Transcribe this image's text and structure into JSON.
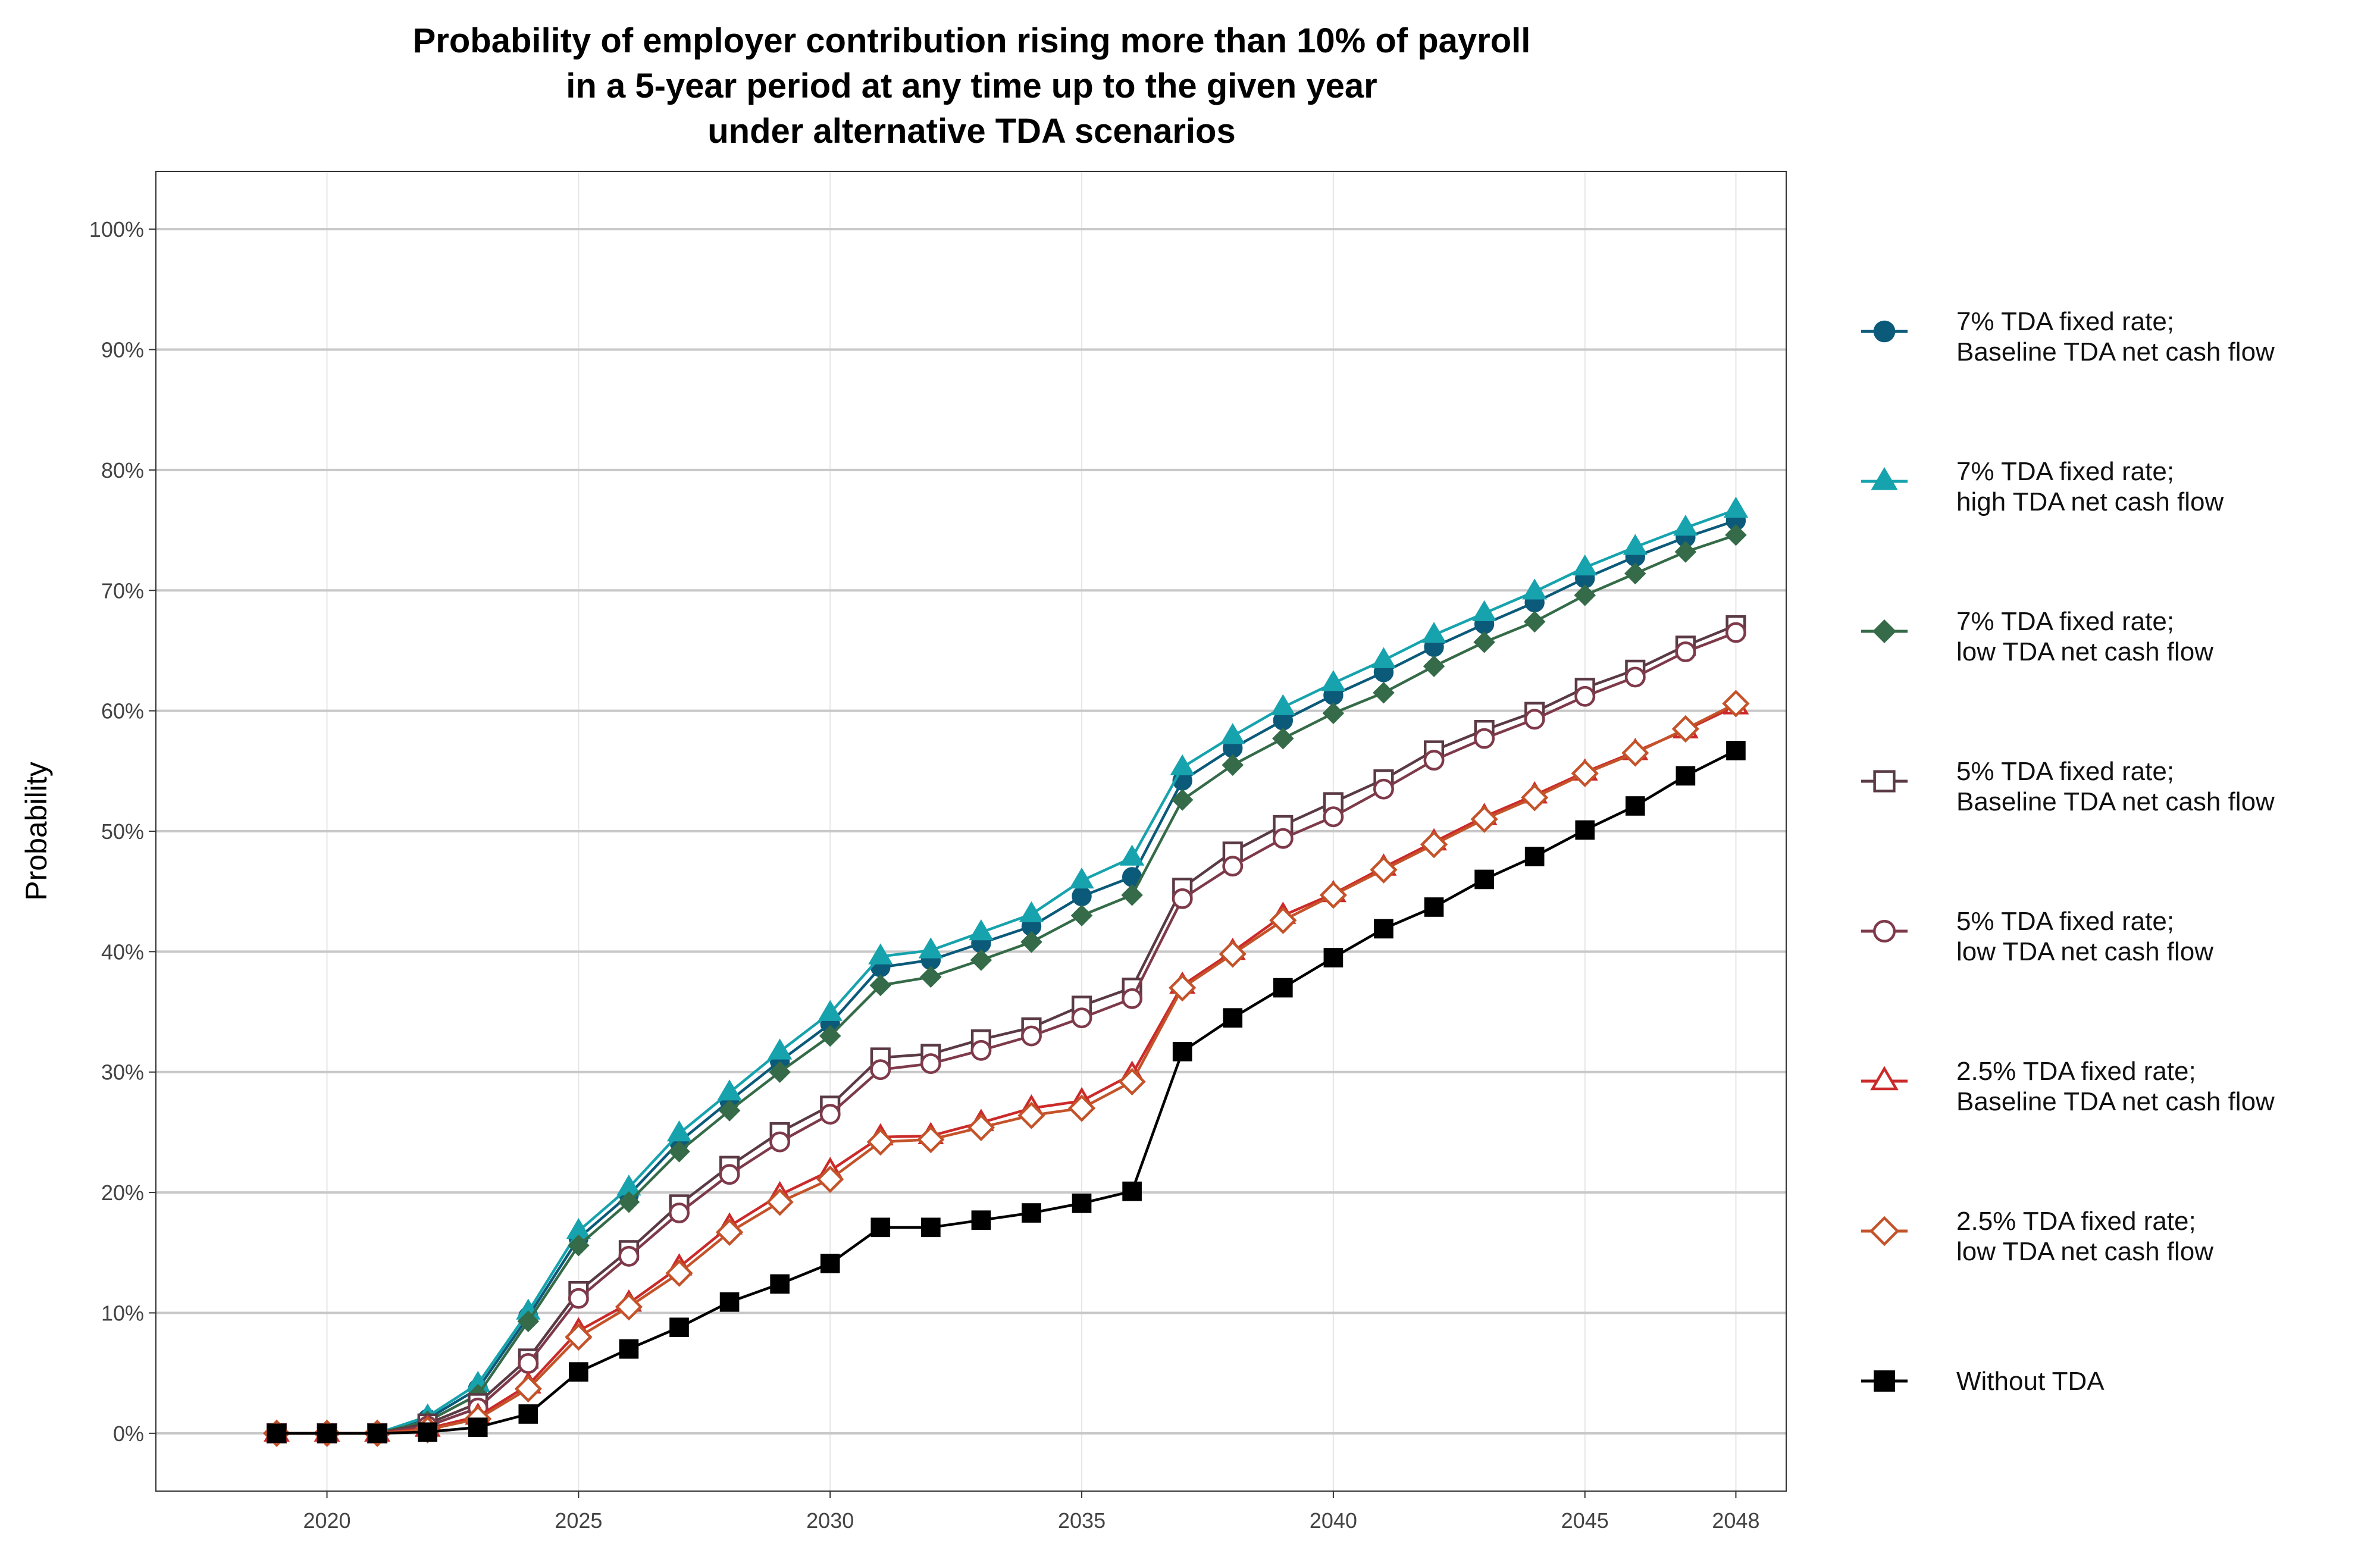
{
  "chart_data": {
    "type": "line",
    "title_lines": [
      "Probability of employer contribution rising more than 10% of payroll",
      "in a 5-year period at any time up to the given year",
      "under alternative TDA scenarios"
    ],
    "xlabel": "",
    "ylabel": "Probability",
    "x": [
      2019,
      2020,
      2021,
      2022,
      2023,
      2024,
      2025,
      2026,
      2027,
      2028,
      2029,
      2030,
      2031,
      2032,
      2033,
      2034,
      2035,
      2036,
      2037,
      2038,
      2039,
      2040,
      2041,
      2042,
      2043,
      2044,
      2045,
      2046,
      2047,
      2048
    ],
    "xlim": [
      2016.6,
      2049.0
    ],
    "ylim": [
      -0.048,
      1.048
    ],
    "x_ticks": [
      2020,
      2025,
      2030,
      2035,
      2040,
      2045,
      2048
    ],
    "x_tick_labels": [
      "2020",
      "2025",
      "2030",
      "2035",
      "2040",
      "2045",
      "2048"
    ],
    "y_ticks": [
      0,
      0.1,
      0.2,
      0.3,
      0.4,
      0.5,
      0.6,
      0.7,
      0.8,
      0.9,
      1.0
    ],
    "y_tick_labels": [
      "0%",
      "10%",
      "20%",
      "30%",
      "40%",
      "50%",
      "60%",
      "70%",
      "80%",
      "90%",
      "100%"
    ],
    "grid": true,
    "legend_position": "right",
    "series": [
      {
        "name_lines": [
          "7% TDA fixed rate;",
          "Baseline TDA net cash flow"
        ],
        "color": "#0b5a7a",
        "marker": "circle",
        "filled": true,
        "values": [
          0.0,
          0.0,
          0.0,
          0.012,
          0.037,
          0.097,
          0.162,
          0.198,
          0.242,
          0.276,
          0.309,
          0.34,
          0.387,
          0.393,
          0.407,
          0.421,
          0.446,
          0.462,
          0.542,
          0.569,
          0.592,
          0.613,
          0.632,
          0.653,
          0.672,
          0.69,
          0.71,
          0.728,
          0.744,
          0.758
        ]
      },
      {
        "name_lines": [
          "7% TDA fixed rate;",
          "high TDA net cash flow"
        ],
        "color": "#17a3ad",
        "marker": "triangle",
        "filled": true,
        "values": [
          0.0,
          0.0,
          0.0,
          0.014,
          0.041,
          0.101,
          0.168,
          0.204,
          0.249,
          0.283,
          0.317,
          0.349,
          0.396,
          0.401,
          0.416,
          0.431,
          0.459,
          0.478,
          0.553,
          0.579,
          0.603,
          0.623,
          0.642,
          0.663,
          0.681,
          0.699,
          0.719,
          0.736,
          0.752,
          0.767
        ]
      },
      {
        "name_lines": [
          "7% TDA fixed rate;",
          "low  TDA net cash flow"
        ],
        "color": "#356b48",
        "marker": "diamond",
        "filled": true,
        "values": [
          0.0,
          0.0,
          0.0,
          0.01,
          0.032,
          0.093,
          0.156,
          0.192,
          0.234,
          0.268,
          0.3,
          0.33,
          0.372,
          0.379,
          0.393,
          0.408,
          0.43,
          0.447,
          0.526,
          0.555,
          0.577,
          0.598,
          0.615,
          0.637,
          0.657,
          0.674,
          0.696,
          0.714,
          0.732,
          0.746
        ]
      },
      {
        "name_lines": [
          "5% TDA fixed rate;",
          "Baseline TDA net cash flow"
        ],
        "color": "#5a3a44",
        "marker": "square",
        "filled": false,
        "values": [
          0.0,
          0.0,
          0.0,
          0.008,
          0.025,
          0.062,
          0.118,
          0.152,
          0.19,
          0.222,
          0.25,
          0.272,
          0.312,
          0.315,
          0.327,
          0.337,
          0.355,
          0.37,
          0.453,
          0.483,
          0.505,
          0.524,
          0.543,
          0.567,
          0.584,
          0.599,
          0.619,
          0.634,
          0.654,
          0.671
        ]
      },
      {
        "name_lines": [
          "5% TDA fixed rate;",
          "low TDA net cash flow"
        ],
        "color": "#7e3a4a",
        "marker": "circle",
        "filled": false,
        "values": [
          0.0,
          0.0,
          0.0,
          0.006,
          0.021,
          0.058,
          0.112,
          0.147,
          0.183,
          0.215,
          0.242,
          0.265,
          0.302,
          0.307,
          0.318,
          0.33,
          0.345,
          0.361,
          0.444,
          0.471,
          0.494,
          0.512,
          0.535,
          0.559,
          0.577,
          0.593,
          0.612,
          0.628,
          0.649,
          0.665
        ]
      },
      {
        "name_lines": [
          "2.5% TDA fixed rate;",
          "Baseline TDA net cash flow"
        ],
        "color": "#cc2a2a",
        "marker": "triangle",
        "filled": false,
        "values": [
          0.0,
          0.0,
          0.0,
          0.004,
          0.014,
          0.04,
          0.085,
          0.108,
          0.138,
          0.172,
          0.198,
          0.218,
          0.246,
          0.247,
          0.258,
          0.27,
          0.276,
          0.298,
          0.372,
          0.4,
          0.43,
          0.448,
          0.47,
          0.491,
          0.512,
          0.53,
          0.549,
          0.566,
          0.584,
          0.604
        ]
      },
      {
        "name_lines": [
          "2.5% TDA fixed rate;",
          "low TDA net cash flow"
        ],
        "color": "#c4532a",
        "marker": "diamond",
        "filled": false,
        "values": [
          0.0,
          0.0,
          0.0,
          0.003,
          0.012,
          0.037,
          0.08,
          0.105,
          0.133,
          0.167,
          0.192,
          0.211,
          0.242,
          0.244,
          0.254,
          0.264,
          0.27,
          0.292,
          0.37,
          0.398,
          0.426,
          0.447,
          0.468,
          0.489,
          0.51,
          0.528,
          0.548,
          0.565,
          0.585,
          0.606
        ]
      },
      {
        "name_lines": [
          "Without TDA"
        ],
        "color": "#000000",
        "marker": "square",
        "filled": true,
        "values": [
          0.0,
          0.0,
          0.0,
          0.001,
          0.005,
          0.016,
          0.051,
          0.07,
          0.088,
          0.109,
          0.124,
          0.141,
          0.171,
          0.171,
          0.177,
          0.183,
          0.191,
          0.201,
          0.317,
          0.345,
          0.37,
          0.395,
          0.419,
          0.437,
          0.46,
          0.479,
          0.501,
          0.521,
          0.546,
          0.567
        ]
      }
    ]
  }
}
